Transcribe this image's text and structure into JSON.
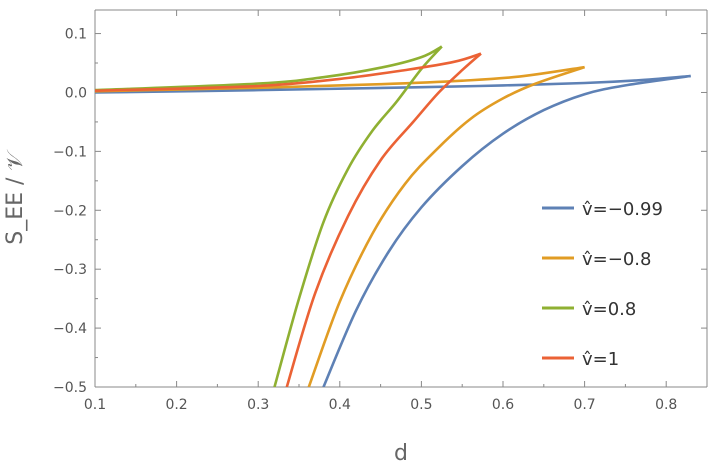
{
  "chart_data": {
    "type": "line",
    "title": "",
    "xlabel": "d",
    "ylabel": "S_EE / 𝒱",
    "xlim": [
      0.1,
      0.85
    ],
    "ylim": [
      -0.5,
      0.14
    ],
    "x_ticks": [
      0.1,
      0.2,
      0.3,
      0.4,
      0.5,
      0.6,
      0.7,
      0.8
    ],
    "y_ticks": [
      -0.5,
      -0.4,
      -0.3,
      -0.2,
      -0.1,
      0.0,
      0.1
    ],
    "x_tick_labels": [
      "0.1",
      "0.2",
      "0.3",
      "0.4",
      "0.5",
      "0.6",
      "0.7",
      "0.8"
    ],
    "y_tick_labels": [
      "−0.5",
      "−0.4",
      "−0.3",
      "−0.2",
      "−0.1",
      "0.0",
      "0.1"
    ],
    "legend_position": "right",
    "series": [
      {
        "name": "v̂=−0.99",
        "color": "#5E81B5",
        "upper": [
          [
            0.1,
            0.0
          ],
          [
            0.3,
            0.004
          ],
          [
            0.5,
            0.009
          ],
          [
            0.6,
            0.012
          ],
          [
            0.7,
            0.016
          ],
          [
            0.77,
            0.021
          ],
          [
            0.83,
            0.028
          ]
        ],
        "lower": [
          [
            0.38,
            -0.5
          ],
          [
            0.42,
            -0.37
          ],
          [
            0.46,
            -0.27
          ],
          [
            0.5,
            -0.195
          ],
          [
            0.55,
            -0.125
          ],
          [
            0.6,
            -0.07
          ],
          [
            0.65,
            -0.03
          ],
          [
            0.7,
            -0.003
          ],
          [
            0.75,
            0.012
          ],
          [
            0.83,
            0.028
          ]
        ]
      },
      {
        "name": "v̂=−0.8",
        "color": "#E19C24",
        "upper": [
          [
            0.1,
            0.002
          ],
          [
            0.3,
            0.008
          ],
          [
            0.45,
            0.014
          ],
          [
            0.55,
            0.02
          ],
          [
            0.62,
            0.027
          ],
          [
            0.7,
            0.043
          ]
        ],
        "lower": [
          [
            0.362,
            -0.5
          ],
          [
            0.4,
            -0.355
          ],
          [
            0.44,
            -0.24
          ],
          [
            0.48,
            -0.155
          ],
          [
            0.52,
            -0.095
          ],
          [
            0.56,
            -0.045
          ],
          [
            0.6,
            -0.01
          ],
          [
            0.64,
            0.015
          ],
          [
            0.7,
            0.043
          ]
        ]
      },
      {
        "name": "v̂=0.8",
        "color": "#8FB032",
        "upper": [
          [
            0.1,
            0.004
          ],
          [
            0.3,
            0.015
          ],
          [
            0.38,
            0.026
          ],
          [
            0.45,
            0.042
          ],
          [
            0.5,
            0.06
          ],
          [
            0.525,
            0.078
          ]
        ],
        "lower": [
          [
            0.32,
            -0.5
          ],
          [
            0.35,
            -0.35
          ],
          [
            0.38,
            -0.22
          ],
          [
            0.41,
            -0.13
          ],
          [
            0.44,
            -0.065
          ],
          [
            0.47,
            -0.015
          ],
          [
            0.5,
            0.04
          ],
          [
            0.525,
            0.078
          ]
        ]
      },
      {
        "name": "v̂=1",
        "color": "#EB6235",
        "upper": [
          [
            0.1,
            0.003
          ],
          [
            0.3,
            0.011
          ],
          [
            0.4,
            0.023
          ],
          [
            0.48,
            0.038
          ],
          [
            0.54,
            0.052
          ],
          [
            0.573,
            0.066
          ]
        ],
        "lower": [
          [
            0.335,
            -0.5
          ],
          [
            0.37,
            -0.34
          ],
          [
            0.41,
            -0.21
          ],
          [
            0.45,
            -0.115
          ],
          [
            0.49,
            -0.05
          ],
          [
            0.52,
            -0.002
          ],
          [
            0.55,
            0.038
          ],
          [
            0.573,
            0.066
          ]
        ]
      }
    ]
  }
}
